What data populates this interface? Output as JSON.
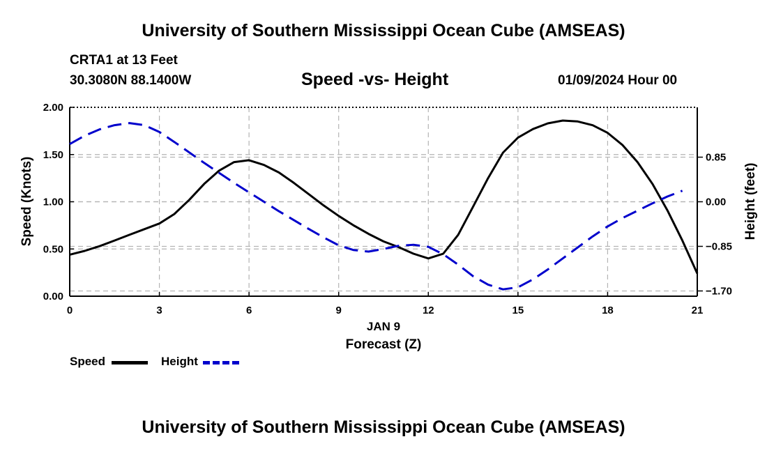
{
  "header": {
    "main_title": "University of Southern Mississippi Ocean Cube (AMSEAS)",
    "station": "CRTA1 at 13 Feet",
    "coords": "30.3080N  88.1400W",
    "chart_title": "Speed -vs- Height",
    "run_time": "01/09/2024 Hour 00"
  },
  "footer": {
    "bottom_title": "University of Southern Mississippi Ocean Cube (AMSEAS)"
  },
  "legend": {
    "speed_label": "Speed",
    "height_label": "Height"
  },
  "colors": {
    "speed": "#000000",
    "height": "#0000cc",
    "grid": "#b4b4b4"
  },
  "chart_data": {
    "type": "line",
    "title": "Speed -vs- Height",
    "xlabel": "Forecast (Z)",
    "date_label": "JAN 9",
    "ylabel": "Speed (Knots)",
    "y2label": "Height (feet)",
    "xlim": [
      0,
      21
    ],
    "ylim": [
      0,
      2
    ],
    "y2lim": [
      -1.8,
      1.8
    ],
    "x_ticks": [
      0,
      3,
      6,
      9,
      12,
      15,
      18,
      21
    ],
    "x_tick_labels": [
      "0",
      "3",
      "6",
      "9",
      "12",
      "15",
      "18",
      "21"
    ],
    "y_ticks": [
      0,
      0.5,
      1,
      1.5,
      2
    ],
    "y_tick_labels": [
      "0.00",
      "0.50",
      "1.00",
      "1.50",
      "2.00"
    ],
    "y2_ticks": [
      0.85,
      0,
      -0.85,
      -1.7
    ],
    "y2_tick_labels": [
      "0.85",
      "0.00",
      "−0.85",
      "−1.70"
    ],
    "grid": true,
    "legend_position": "bottom-left",
    "series": [
      {
        "name": "Speed",
        "axis": "left",
        "style": "solid",
        "x": [
          0,
          0.5,
          1,
          1.5,
          2,
          2.5,
          3,
          3.5,
          4,
          4.5,
          5,
          5.5,
          6,
          6.5,
          7,
          7.5,
          8,
          8.5,
          9,
          9.5,
          10,
          10.5,
          11,
          11.5,
          12,
          12.5,
          13,
          13.5,
          14,
          14.5,
          15,
          15.5,
          16,
          16.5,
          17,
          17.5,
          18,
          18.5,
          19,
          19.5,
          20,
          20.5,
          21
        ],
        "values": [
          0.44,
          0.48,
          0.53,
          0.59,
          0.65,
          0.71,
          0.77,
          0.87,
          1.02,
          1.19,
          1.33,
          1.42,
          1.44,
          1.39,
          1.31,
          1.2,
          1.08,
          0.96,
          0.85,
          0.75,
          0.66,
          0.58,
          0.52,
          0.45,
          0.4,
          0.45,
          0.65,
          0.95,
          1.25,
          1.52,
          1.68,
          1.77,
          1.83,
          1.86,
          1.85,
          1.81,
          1.73,
          1.6,
          1.42,
          1.19,
          0.91,
          0.59,
          0.24
        ]
      },
      {
        "name": "Height",
        "axis": "right",
        "style": "dashed",
        "x": [
          0,
          0.5,
          1,
          1.5,
          2,
          2.5,
          3,
          3.5,
          4,
          4.5,
          5,
          5.5,
          6,
          6.5,
          7,
          7.5,
          8,
          8.5,
          9,
          9.5,
          10,
          10.5,
          11,
          11.5,
          12,
          12.5,
          13,
          13.5,
          14,
          14.5,
          15,
          15.5,
          16,
          16.5,
          17,
          17.5,
          18,
          18.5,
          19,
          19.5,
          20,
          20.5
        ],
        "values": [
          1.1,
          1.26,
          1.38,
          1.46,
          1.5,
          1.46,
          1.33,
          1.14,
          0.94,
          0.74,
          0.55,
          0.36,
          0.18,
          0.0,
          -0.18,
          -0.35,
          -0.52,
          -0.68,
          -0.83,
          -0.92,
          -0.95,
          -0.9,
          -0.84,
          -0.82,
          -0.86,
          -1.0,
          -1.2,
          -1.42,
          -1.58,
          -1.67,
          -1.63,
          -1.48,
          -1.29,
          -1.08,
          -0.87,
          -0.66,
          -0.47,
          -0.31,
          -0.17,
          -0.03,
          0.1,
          0.21
        ]
      }
    ]
  }
}
